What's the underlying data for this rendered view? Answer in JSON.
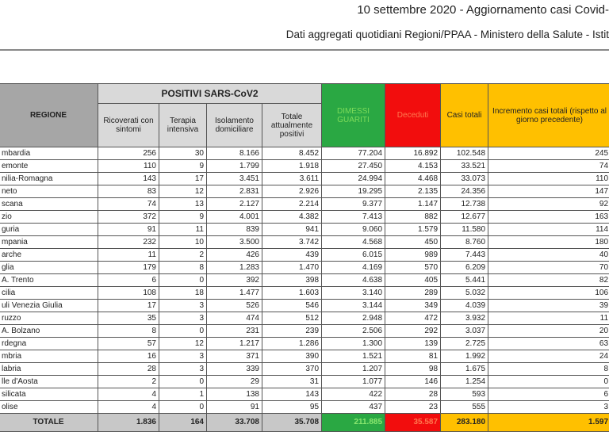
{
  "title": "10 settembre 2020 - Aggiornamento casi Covid-",
  "subtitle": "Dati aggregati quotidiani Regioni/PPAA - Ministero della Salute - Istit",
  "headers": {
    "regione": "REGIONE",
    "positivi": "POSITIVI SARS-CoV2",
    "ricoverati": "Ricoverati con sintomi",
    "terapia": "Terapia intensiva",
    "isolamento": "Isolamento domiciliare",
    "totale_positivi": "Totale attualmente positivi",
    "dimessi": "DIMESSI GUARITI",
    "deceduti": "Deceduti",
    "casi_totali": "Casi totali",
    "incremento": "Incremento casi totali (rispetto al giorno precedente)"
  },
  "rows": [
    [
      "mbardia",
      "256",
      "30",
      "8.166",
      "8.452",
      "77.204",
      "16.892",
      "102.548",
      "245"
    ],
    [
      "emonte",
      "110",
      "9",
      "1.799",
      "1.918",
      "27.450",
      "4.153",
      "33.521",
      "74"
    ],
    [
      "nilia-Romagna",
      "143",
      "17",
      "3.451",
      "3.611",
      "24.994",
      "4.468",
      "33.073",
      "110"
    ],
    [
      "neto",
      "83",
      "12",
      "2.831",
      "2.926",
      "19.295",
      "2.135",
      "24.356",
      "147"
    ],
    [
      "scana",
      "74",
      "13",
      "2.127",
      "2.214",
      "9.377",
      "1.147",
      "12.738",
      "92"
    ],
    [
      "zio",
      "372",
      "9",
      "4.001",
      "4.382",
      "7.413",
      "882",
      "12.677",
      "163"
    ],
    [
      "guria",
      "91",
      "11",
      "839",
      "941",
      "9.060",
      "1.579",
      "11.580",
      "114"
    ],
    [
      "mpania",
      "232",
      "10",
      "3.500",
      "3.742",
      "4.568",
      "450",
      "8.760",
      "180"
    ],
    [
      "arche",
      "11",
      "2",
      "426",
      "439",
      "6.015",
      "989",
      "7.443",
      "40"
    ],
    [
      "glia",
      "179",
      "8",
      "1.283",
      "1.470",
      "4.169",
      "570",
      "6.209",
      "70"
    ],
    [
      "A. Trento",
      "6",
      "0",
      "392",
      "398",
      "4.638",
      "405",
      "5.441",
      "82"
    ],
    [
      "cilia",
      "108",
      "18",
      "1.477",
      "1.603",
      "3.140",
      "289",
      "5.032",
      "106"
    ],
    [
      "uli Venezia Giulia",
      "17",
      "3",
      "526",
      "546",
      "3.144",
      "349",
      "4.039",
      "39"
    ],
    [
      "ruzzo",
      "35",
      "3",
      "474",
      "512",
      "2.948",
      "472",
      "3.932",
      "11"
    ],
    [
      "A. Bolzano",
      "8",
      "0",
      "231",
      "239",
      "2.506",
      "292",
      "3.037",
      "20"
    ],
    [
      "rdegna",
      "57",
      "12",
      "1.217",
      "1.286",
      "1.300",
      "139",
      "2.725",
      "63"
    ],
    [
      "mbria",
      "16",
      "3",
      "371",
      "390",
      "1.521",
      "81",
      "1.992",
      "24"
    ],
    [
      "labria",
      "28",
      "3",
      "339",
      "370",
      "1.207",
      "98",
      "1.675",
      "8"
    ],
    [
      "lle d'Aosta",
      "2",
      "0",
      "29",
      "31",
      "1.077",
      "146",
      "1.254",
      "0"
    ],
    [
      "silicata",
      "4",
      "1",
      "138",
      "143",
      "422",
      "28",
      "593",
      "6"
    ],
    [
      "olise",
      "4",
      "0",
      "91",
      "95",
      "437",
      "23",
      "555",
      "3"
    ]
  ],
  "totals": [
    "TOTALE",
    "1.836",
    "164",
    "33.708",
    "35.708",
    "211.885",
    "35.587",
    "283.180",
    "1.597"
  ],
  "colors": {
    "dimessi": "#2aa843",
    "deceduti": "#f20d0d",
    "casi": "#ffc000",
    "header": "#a6a6a6"
  }
}
